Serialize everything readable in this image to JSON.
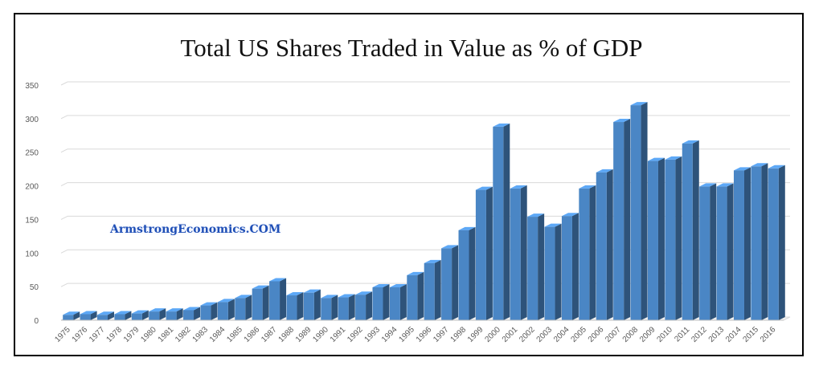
{
  "chart_data": {
    "type": "bar",
    "title": "Total US Shares Traded in Value as % of GDP",
    "xlabel": "",
    "ylabel": "",
    "ylim": [
      0,
      350
    ],
    "yticks": [
      0,
      50,
      100,
      150,
      200,
      250,
      300,
      350
    ],
    "grid": true,
    "legend": "none",
    "bar_color": "#4a86c5",
    "categories": [
      "1975",
      "1976",
      "1977",
      "1978",
      "1979",
      "1980",
      "1981",
      "1982",
      "1983",
      "1984",
      "1985",
      "1986",
      "1987",
      "1988",
      "1989",
      "1990",
      "1991",
      "1992",
      "1993",
      "1994",
      "1995",
      "1996",
      "1997",
      "1998",
      "1999",
      "2000",
      "2001",
      "2002",
      "2003",
      "2004",
      "2005",
      "2006",
      "2007",
      "2008",
      "2009",
      "2010",
      "2011",
      "2012",
      "2013",
      "2014",
      "2015",
      "2016"
    ],
    "values": [
      8,
      9,
      8,
      9,
      10,
      13,
      13,
      15,
      22,
      27,
      33,
      47,
      58,
      37,
      41,
      33,
      34,
      38,
      49,
      49,
      67,
      85,
      107,
      134,
      194,
      288,
      196,
      154,
      139,
      155,
      196,
      220,
      295,
      320,
      237,
      239,
      263,
      199,
      199,
      223,
      229,
      226
    ]
  },
  "watermark": "ArmstrongEconomics.COM"
}
